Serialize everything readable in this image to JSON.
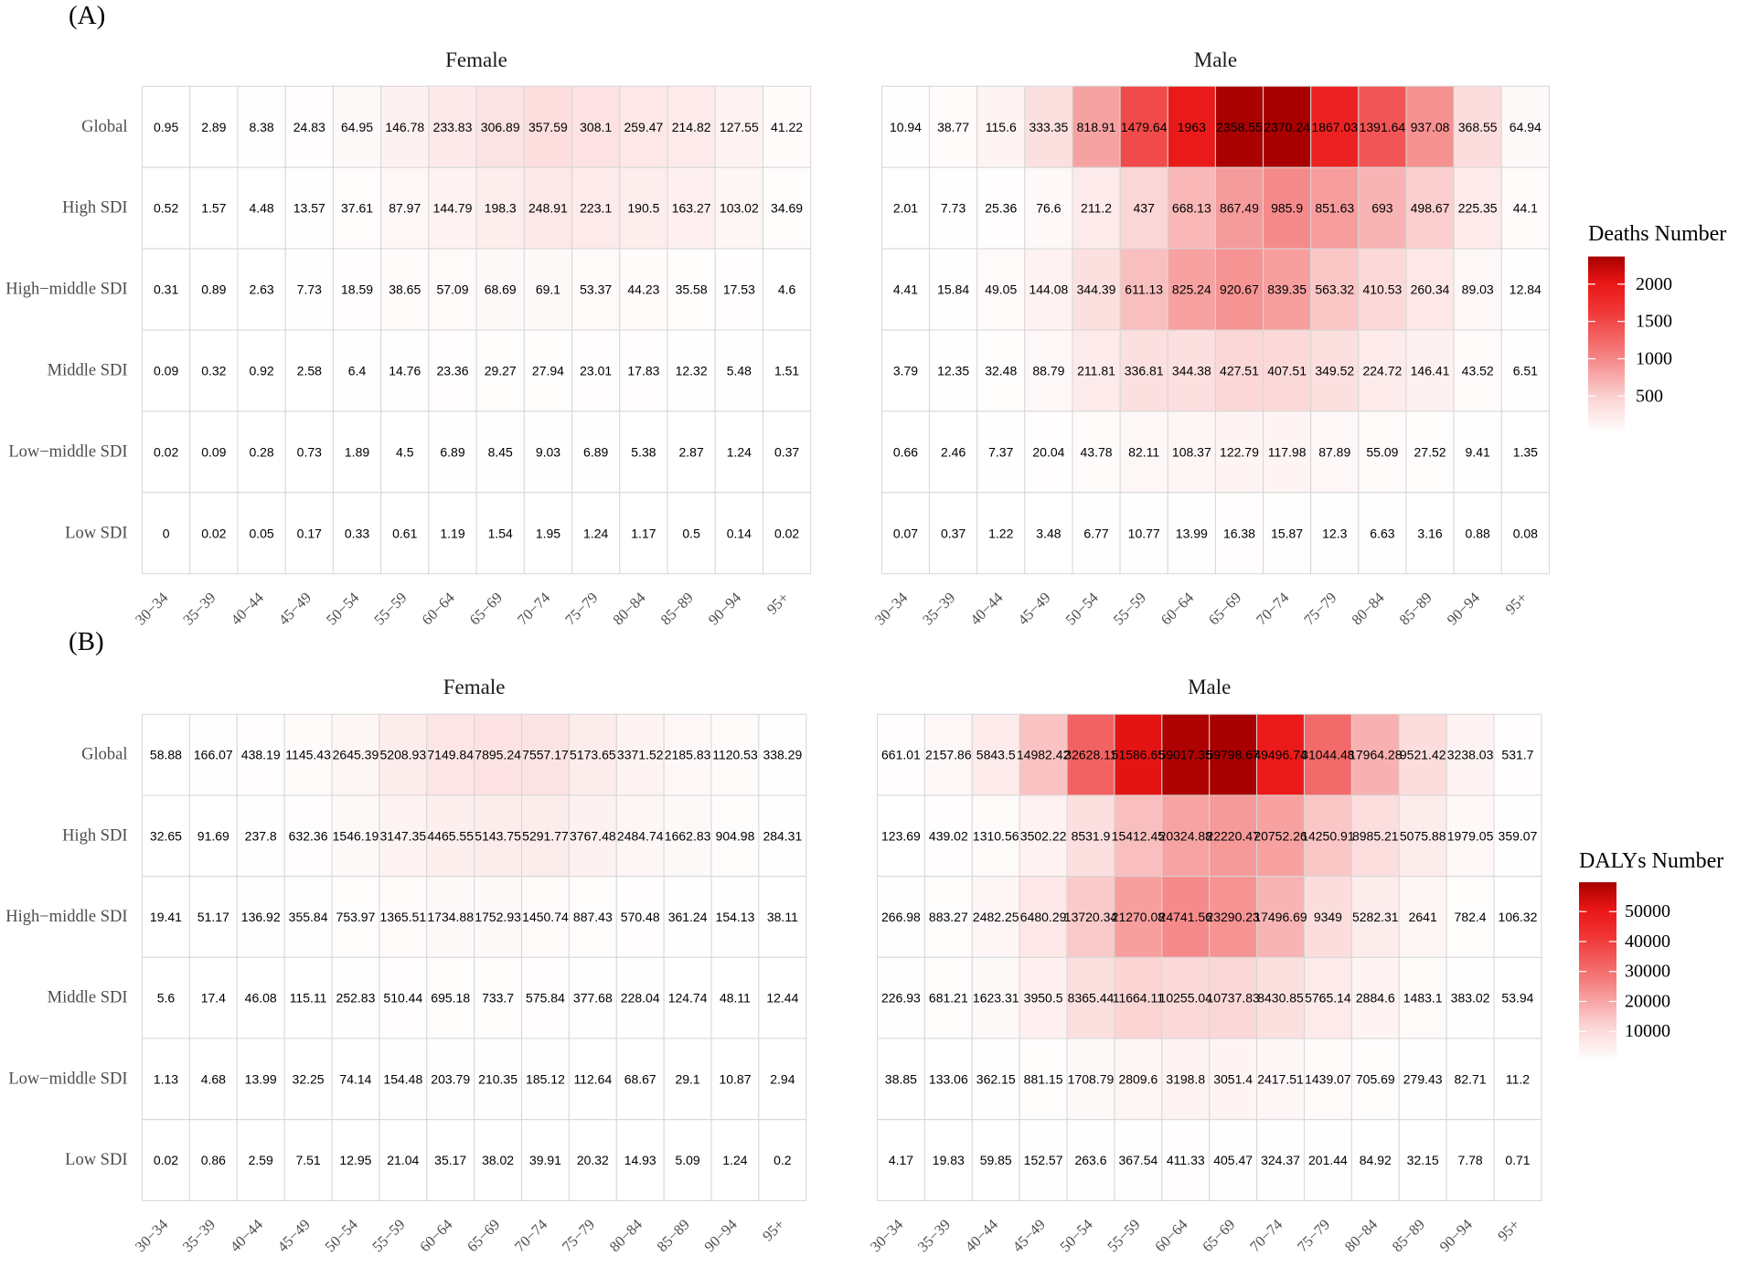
{
  "chart_data": [
    {
      "type": "heatmap",
      "panel_label": "(A)",
      "x_categories": [
        "30−34",
        "35−39",
        "40−44",
        "45−49",
        "50−54",
        "55−59",
        "60−64",
        "65−69",
        "70−74",
        "75−79",
        "80−84",
        "85−89",
        "90−94",
        "95+"
      ],
      "y_categories": [
        "Global",
        "High SDI",
        "High−middle SDI",
        "Middle SDI",
        "Low−middle SDI",
        "Low SDI"
      ],
      "facets": [
        {
          "title": "Female",
          "values": [
            [
              0.95,
              2.89,
              8.38,
              24.83,
              64.95,
              146.78,
              233.83,
              306.89,
              357.59,
              308.1,
              259.47,
              214.82,
              127.55,
              41.22
            ],
            [
              0.52,
              1.57,
              4.48,
              13.57,
              37.61,
              87.97,
              144.79,
              198.3,
              248.91,
              223.1,
              190.5,
              163.27,
              103.02,
              34.69
            ],
            [
              0.31,
              0.89,
              2.63,
              7.73,
              18.59,
              38.65,
              57.09,
              68.69,
              69.1,
              53.37,
              44.23,
              35.58,
              17.53,
              4.6
            ],
            [
              0.09,
              0.32,
              0.92,
              2.58,
              6.4,
              14.76,
              23.36,
              29.27,
              27.94,
              23.01,
              17.83,
              12.32,
              5.48,
              1.51
            ],
            [
              0.02,
              0.09,
              0.28,
              0.73,
              1.89,
              4.5,
              6.89,
              8.45,
              9.03,
              6.89,
              5.38,
              2.87,
              1.24,
              0.37
            ],
            [
              0,
              0.02,
              0.05,
              0.17,
              0.33,
              0.61,
              1.19,
              1.54,
              1.95,
              1.24,
              1.17,
              0.5,
              0.14,
              0.02
            ]
          ]
        },
        {
          "title": "Male",
          "values": [
            [
              10.94,
              38.77,
              115.6,
              333.35,
              818.91,
              1479.64,
              1963,
              2358.55,
              2370.24,
              1867.03,
              1391.64,
              937.08,
              368.55,
              64.94
            ],
            [
              2.01,
              7.73,
              25.36,
              76.6,
              211.2,
              437,
              668.13,
              867.49,
              985.9,
              851.63,
              693,
              498.67,
              225.35,
              44.1
            ],
            [
              4.41,
              15.84,
              49.05,
              144.08,
              344.39,
              611.13,
              825.24,
              920.67,
              839.35,
              563.32,
              410.53,
              260.34,
              89.03,
              12.84
            ],
            [
              3.79,
              12.35,
              32.48,
              88.79,
              211.81,
              336.81,
              344.38,
              427.51,
              407.51,
              349.52,
              224.72,
              146.41,
              43.52,
              6.51
            ],
            [
              0.66,
              2.46,
              7.37,
              20.04,
              43.78,
              82.11,
              108.37,
              122.79,
              117.98,
              87.89,
              55.09,
              27.52,
              9.41,
              1.35
            ],
            [
              0.07,
              0.37,
              1.22,
              3.48,
              6.77,
              10.77,
              13.99,
              16.38,
              15.87,
              12.3,
              6.63,
              3.16,
              0.88,
              0.08
            ]
          ]
        }
      ],
      "legend": {
        "title": "Deaths Number",
        "ticks": [
          2000,
          1500,
          1000,
          500
        ],
        "position": "right"
      },
      "color_scale": {
        "low": "#FFFFFF",
        "high": "#A80000"
      }
    },
    {
      "type": "heatmap",
      "panel_label": "(B)",
      "x_categories": [
        "30−34",
        "35−39",
        "40−44",
        "45−49",
        "50−54",
        "55−59",
        "60−64",
        "65−69",
        "70−74",
        "75−79",
        "80−84",
        "85−89",
        "90−94",
        "95+"
      ],
      "y_categories": [
        "Global",
        "High SDI",
        "High−middle SDI",
        "Middle SDI",
        "Low−middle SDI",
        "Low SDI"
      ],
      "facets": [
        {
          "title": "Female",
          "values": [
            [
              58.88,
              166.07,
              438.19,
              1145.43,
              2645.39,
              5208.93,
              7149.84,
              7895.24,
              7557.17,
              5173.65,
              3371.52,
              2185.83,
              1120.53,
              338.29
            ],
            [
              32.65,
              91.69,
              237.8,
              632.36,
              1546.19,
              3147.35,
              4465.55,
              5143.75,
              5291.77,
              3767.48,
              2484.74,
              1662.83,
              904.98,
              284.31
            ],
            [
              19.41,
              51.17,
              136.92,
              355.84,
              753.97,
              1365.51,
              1734.88,
              1752.93,
              1450.74,
              887.43,
              570.48,
              361.24,
              154.13,
              38.11
            ],
            [
              5.6,
              17.4,
              46.08,
              115.11,
              252.83,
              510.44,
              695.18,
              733.7,
              575.84,
              377.68,
              228.04,
              124.74,
              48.11,
              12.44
            ],
            [
              1.13,
              4.68,
              13.99,
              32.25,
              74.14,
              154.48,
              203.79,
              210.35,
              185.12,
              112.64,
              68.67,
              29.1,
              10.87,
              2.94
            ],
            [
              0.02,
              0.86,
              2.59,
              7.51,
              12.95,
              21.04,
              35.17,
              38.02,
              39.91,
              20.32,
              14.93,
              5.09,
              1.24,
              0.2
            ]
          ]
        },
        {
          "title": "Male",
          "values": [
            [
              661.01,
              2157.86,
              5843.5,
              14982.42,
              32628.11,
              51586.65,
              59017.35,
              59798.67,
              49496.74,
              31044.48,
              17964.28,
              9521.42,
              3238.03,
              531.7
            ],
            [
              123.69,
              439.02,
              1310.56,
              3502.22,
              8531.9,
              15412.45,
              20324.88,
              22220.47,
              20752.26,
              14250.91,
              8985.21,
              5075.88,
              1979.05,
              359.07
            ],
            [
              266.98,
              883.27,
              2482.25,
              6480.29,
              13720.34,
              21270.08,
              24741.56,
              23290.23,
              17496.69,
              9349,
              5282.31,
              2641,
              782.4,
              106.32
            ],
            [
              226.93,
              681.21,
              1623.31,
              3950.5,
              8365.44,
              11664.11,
              10255.04,
              10737.83,
              8430.85,
              5765.14,
              2884.6,
              1483.1,
              383.02,
              53.94
            ],
            [
              38.85,
              133.06,
              362.15,
              881.15,
              1708.79,
              2809.6,
              3198.8,
              3051.4,
              2417.51,
              1439.07,
              705.69,
              279.43,
              82.71,
              11.2
            ],
            [
              4.17,
              19.83,
              59.85,
              152.57,
              263.6,
              367.54,
              411.33,
              405.47,
              324.37,
              201.44,
              84.92,
              32.15,
              7.78,
              0.71
            ]
          ]
        }
      ],
      "legend": {
        "title": "DALYs Number",
        "ticks": [
          50000,
          40000,
          30000,
          20000,
          10000
        ],
        "position": "right"
      },
      "color_scale": {
        "low": "#FFFFFF",
        "high": "#A80000"
      }
    }
  ]
}
